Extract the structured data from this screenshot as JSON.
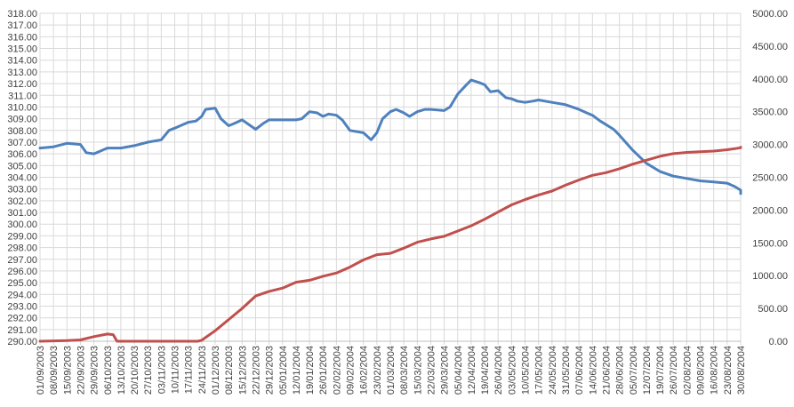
{
  "chart_data": {
    "type": "line",
    "title": "",
    "grid": true,
    "legend": "none",
    "y_left": {
      "range": [
        290,
        318
      ],
      "ticks": [
        "290.00",
        "291.00",
        "292.00",
        "293.00",
        "294.00",
        "295.00",
        "296.00",
        "297.00",
        "298.00",
        "299.00",
        "300.00",
        "301.00",
        "302.00",
        "303.00",
        "304.00",
        "305.00",
        "306.00",
        "307.00",
        "308.00",
        "309.00",
        "310.00",
        "311.00",
        "312.00",
        "313.00",
        "314.00",
        "315.00",
        "316.00",
        "317.00",
        "318.00"
      ]
    },
    "y_right": {
      "range": [
        0,
        5000
      ],
      "ticks": [
        "0.00",
        "500.00",
        "1000.00",
        "1500.00",
        "2000.00",
        "2500.00",
        "3000.00",
        "3500.00",
        "4000.00",
        "4500.00",
        "5000.00"
      ]
    },
    "x_tick_labels": [
      "01/09/2003",
      "08/09/2003",
      "15/09/2003",
      "22/09/2003",
      "29/09/2003",
      "06/10/2003",
      "13/10/2003",
      "20/10/2003",
      "27/10/2003",
      "03/11/2003",
      "10/11/2003",
      "17/11/2003",
      "24/11/2003",
      "01/12/2003",
      "08/12/2003",
      "15/12/2003",
      "22/12/2003",
      "29/12/2003",
      "05/01/2004",
      "12/01/2004",
      "19/01/2004",
      "26/01/2004",
      "02/02/2004",
      "09/02/2004",
      "16/02/2004",
      "23/02/2004",
      "01/03/2004",
      "08/03/2004",
      "15/03/2004",
      "22/03/2004",
      "29/03/2004",
      "05/04/2004",
      "12/04/2004",
      "19/04/2004",
      "26/04/2004",
      "03/05/2004",
      "10/05/2004",
      "17/05/2004",
      "24/05/2004",
      "31/05/2004",
      "07/06/2004",
      "14/06/2004",
      "21/06/2004",
      "28/06/2004",
      "05/07/2004",
      "12/07/2004",
      "19/07/2004",
      "26/07/2004",
      "02/08/2004",
      "09/08/2004",
      "16/08/2004",
      "23/08/2004",
      "30/08/2004"
    ],
    "series": [
      {
        "axis": "left",
        "color": "#4f81bd",
        "x": [
          "01/09/2003",
          "08/09/2003",
          "15/09/2003",
          "22/09/2003",
          "25/09/2003",
          "29/09/2003",
          "06/10/2003",
          "13/10/2003",
          "20/10/2003",
          "27/10/2003",
          "03/11/2003",
          "07/11/2003",
          "10/11/2003",
          "17/11/2003",
          "21/11/2003",
          "24/11/2003",
          "26/11/2003",
          "01/12/2003",
          "04/12/2003",
          "08/12/2003",
          "11/12/2003",
          "15/12/2003",
          "22/12/2003",
          "26/12/2003",
          "29/12/2003",
          "05/01/2004",
          "12/01/2004",
          "15/01/2004",
          "19/01/2004",
          "23/01/2004",
          "26/01/2004",
          "29/01/2004",
          "02/02/2004",
          "05/02/2004",
          "09/02/2004",
          "16/02/2004",
          "20/02/2004",
          "23/02/2004",
          "26/02/2004",
          "01/03/2004",
          "04/03/2004",
          "08/03/2004",
          "11/03/2004",
          "15/03/2004",
          "19/03/2004",
          "22/03/2004",
          "29/03/2004",
          "01/04/2004",
          "05/04/2004",
          "09/04/2004",
          "12/04/2004",
          "16/04/2004",
          "19/04/2004",
          "22/04/2004",
          "26/04/2004",
          "30/04/2004",
          "03/05/2004",
          "06/05/2004",
          "10/05/2004",
          "14/05/2004",
          "17/05/2004",
          "24/05/2004",
          "31/05/2004",
          "07/06/2004",
          "11/06/2004",
          "14/06/2004",
          "18/06/2004",
          "21/06/2004",
          "25/06/2004",
          "28/06/2004",
          "05/07/2004",
          "12/07/2004",
          "19/07/2004",
          "26/07/2004",
          "02/08/2004",
          "09/08/2004",
          "16/08/2004",
          "23/08/2004",
          "27/08/2004",
          "30/08/2004",
          "02/09/2004"
        ],
        "values": [
          306.5,
          306.6,
          306.9,
          306.8,
          306.1,
          306.0,
          306.5,
          306.5,
          306.7,
          307.0,
          307.2,
          308.0,
          308.2,
          308.7,
          308.8,
          309.2,
          309.8,
          309.9,
          309.0,
          308.4,
          308.6,
          308.9,
          308.1,
          308.6,
          308.9,
          308.9,
          308.9,
          309.0,
          309.6,
          309.5,
          309.2,
          309.4,
          309.3,
          308.9,
          308.0,
          307.8,
          307.2,
          307.8,
          309.0,
          309.6,
          309.8,
          309.5,
          309.2,
          309.6,
          309.8,
          309.8,
          309.7,
          310.0,
          311.1,
          311.8,
          312.3,
          312.1,
          311.9,
          311.3,
          311.4,
          310.8,
          310.7,
          310.5,
          310.4,
          310.5,
          310.6,
          310.4,
          310.2,
          309.8,
          309.5,
          309.3,
          308.8,
          308.5,
          308.1,
          307.6,
          306.3,
          305.2,
          304.5,
          304.1,
          303.9,
          303.7,
          303.6,
          303.5,
          303.2,
          302.9,
          302.6
        ]
      },
      {
        "axis": "right",
        "color": "#c0504d",
        "x": [
          "01/09/2003",
          "08/09/2003",
          "15/09/2003",
          "22/09/2003",
          "29/09/2003",
          "06/10/2003",
          "09/10/2003",
          "11/10/2003",
          "22/11/2003",
          "24/11/2003",
          "01/12/2003",
          "08/12/2003",
          "15/12/2003",
          "22/12/2003",
          "29/12/2003",
          "05/01/2004",
          "12/01/2004",
          "19/01/2004",
          "26/01/2004",
          "02/02/2004",
          "09/02/2004",
          "16/02/2004",
          "23/02/2004",
          "01/03/2004",
          "08/03/2004",
          "15/03/2004",
          "22/03/2004",
          "29/03/2004",
          "05/04/2004",
          "12/04/2004",
          "19/04/2004",
          "26/04/2004",
          "03/05/2004",
          "10/05/2004",
          "17/05/2004",
          "24/05/2004",
          "31/05/2004",
          "07/06/2004",
          "14/06/2004",
          "21/06/2004",
          "28/06/2004",
          "05/07/2004",
          "12/07/2004",
          "19/07/2004",
          "26/07/2004",
          "02/08/2004",
          "09/08/2004",
          "16/08/2004",
          "23/08/2004",
          "30/08/2004",
          "02/09/2004"
        ],
        "values": [
          0,
          5,
          10,
          20,
          70,
          110,
          100,
          0,
          0,
          15,
          160,
          330,
          500,
          690,
          760,
          810,
          900,
          930,
          990,
          1040,
          1130,
          1240,
          1320,
          1340,
          1420,
          1510,
          1560,
          1600,
          1680,
          1760,
          1860,
          1970,
          2080,
          2160,
          2230,
          2290,
          2380,
          2460,
          2530,
          2570,
          2630,
          2700,
          2760,
          2820,
          2860,
          2880,
          2890,
          2900,
          2920,
          2950,
          2960
        ]
      }
    ]
  }
}
